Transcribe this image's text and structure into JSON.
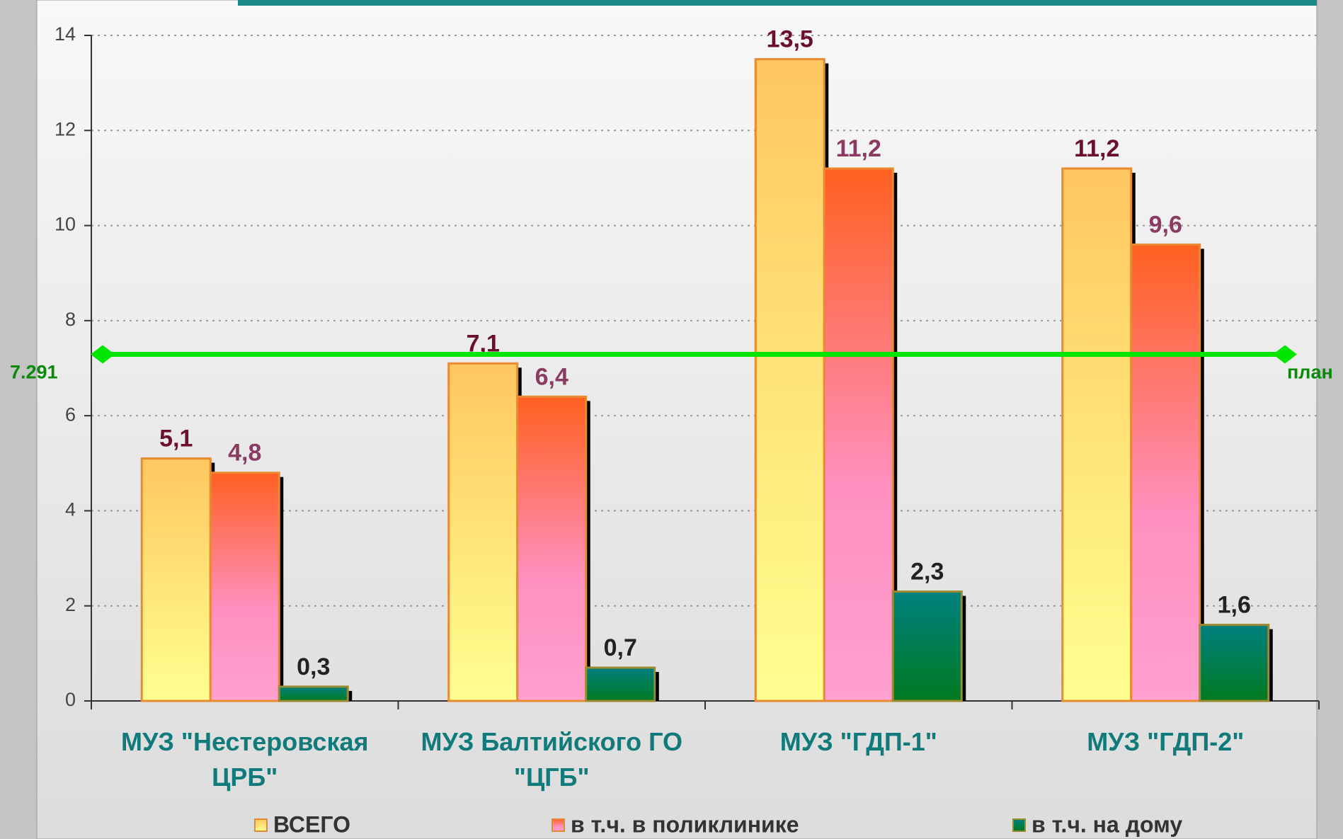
{
  "chart_data": {
    "type": "bar",
    "categories": [
      "МУЗ \"Нестеровская ЦРБ\"",
      "МУЗ Балтийского ГО \"ЦГБ\"",
      "МУЗ \"ГДП-1\"",
      "МУЗ \"ГДП-2\""
    ],
    "series": [
      {
        "name": "ВСЕГО",
        "color": "#ffc760",
        "values": [
          5.1,
          7.1,
          13.5,
          11.2
        ],
        "value_labels": [
          "5,1",
          "7,1",
          "13,5",
          "11,2"
        ]
      },
      {
        "name": "в т.ч. в поликлинике",
        "color": "#ff6020",
        "values": [
          4.8,
          6.4,
          11.2,
          9.6
        ],
        "value_labels": [
          "4,8",
          "6,4",
          "11,2",
          "9,6"
        ]
      },
      {
        "name": "в т.ч. на дому",
        "color": "#008080",
        "values": [
          0.3,
          0.7,
          2.3,
          1.6
        ],
        "value_labels": [
          "0,3",
          "0,7",
          "2,3",
          "1,6"
        ]
      }
    ],
    "ylim": [
      0,
      14
    ],
    "yticks": [
      0,
      2,
      4,
      6,
      8,
      10,
      12,
      14
    ],
    "grid": true,
    "reference_line": {
      "value": 7.291,
      "name": "план",
      "color": "#00e600"
    },
    "legend": "bottom"
  }
}
